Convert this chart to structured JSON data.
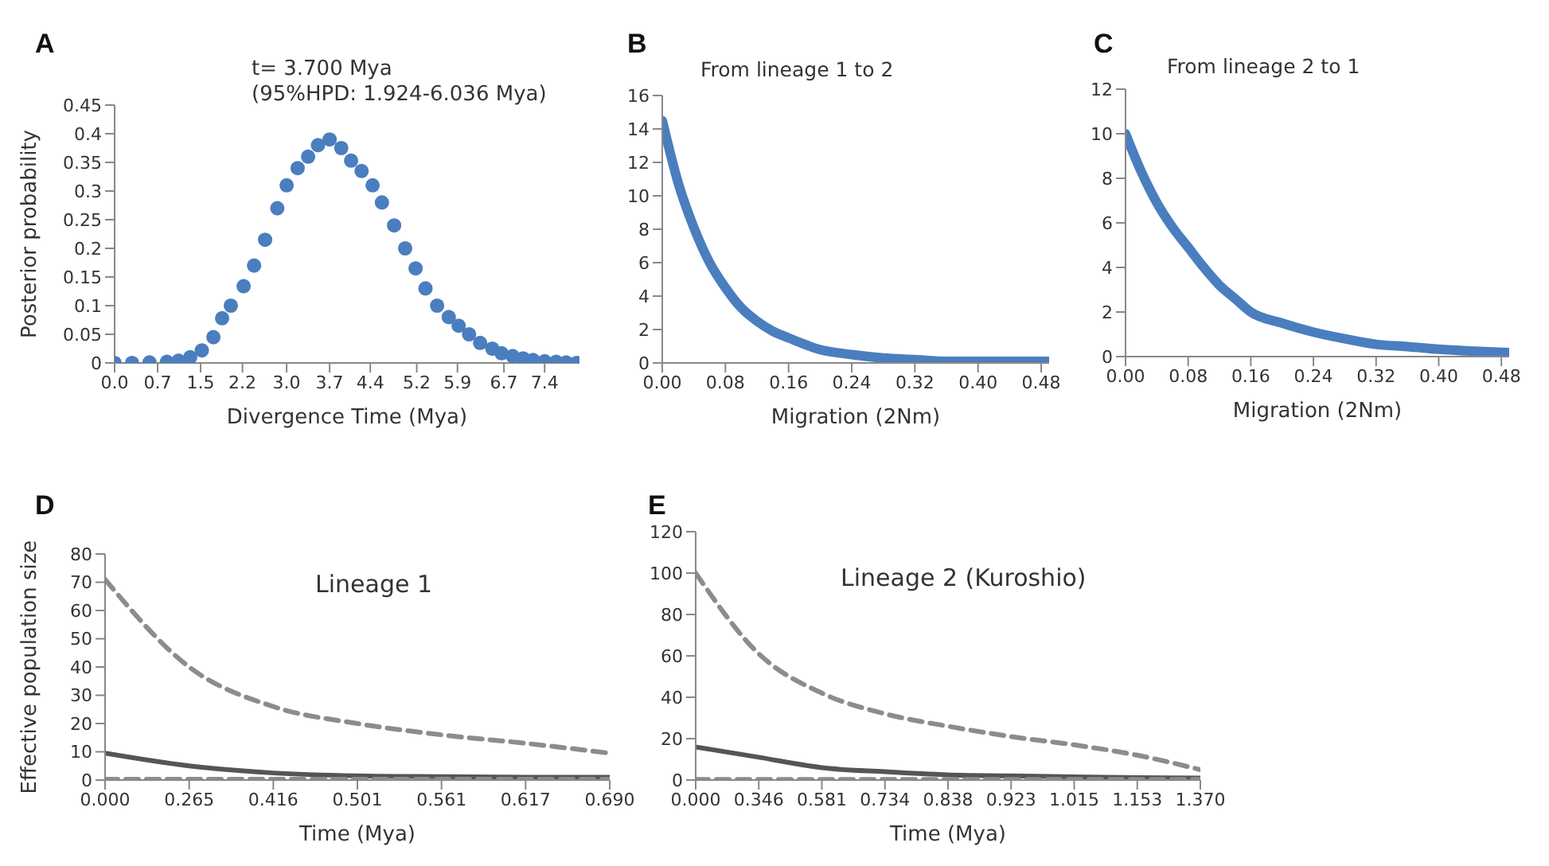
{
  "chart_data": [
    {
      "type": "scatter",
      "title": "A",
      "annotations": [
        "t= 3.700 Mya",
        "(95%HPD: 1.924-6.036 Mya)"
      ],
      "xlabel": "Divergence Time (Mya)",
      "ylabel": "Posterior probability",
      "marker": "circle",
      "x": [
        0,
        0.3,
        0.6,
        0.9,
        1.1,
        1.3,
        1.5,
        1.7,
        1.85,
        2.0,
        2.22,
        2.4,
        2.59,
        2.8,
        2.96,
        3.15,
        3.33,
        3.5,
        3.7,
        3.9,
        4.07,
        4.25,
        4.44,
        4.6,
        4.81,
        5.0,
        5.18,
        5.35,
        5.55,
        5.75,
        5.92,
        6.1,
        6.29,
        6.5,
        6.66,
        6.85,
        7.03,
        7.2,
        7.4,
        7.6,
        7.77,
        7.95
      ],
      "series": [
        {
          "color": "#4a7ebf",
          "values": [
            0,
            0,
            0.001,
            0.002,
            0.004,
            0.01,
            0.022,
            0.045,
            0.078,
            0.1,
            0.134,
            0.17,
            0.215,
            0.27,
            0.31,
            0.34,
            0.36,
            0.38,
            0.39,
            0.375,
            0.353,
            0.335,
            0.31,
            0.28,
            0.24,
            0.2,
            0.165,
            0.13,
            0.1,
            0.08,
            0.065,
            0.05,
            0.035,
            0.025,
            0.017,
            0.012,
            0.008,
            0.005,
            0.003,
            0.002,
            0.001,
            0
          ]
        }
      ],
      "xlim": [
        0,
        8.0
      ],
      "xticks": [
        {
          "value": 0,
          "label": "0.0"
        },
        {
          "value": 0.74,
          "label": "0.7"
        },
        {
          "value": 1.48,
          "label": "1.5"
        },
        2.2,
        {
          "value": 2.96,
          "label": "3.0"
        },
        3.7,
        4.4,
        5.2,
        5.9,
        6.7,
        7.4
      ],
      "ylim": [
        0,
        0.45
      ],
      "yticks": [
        0,
        0.05,
        0.1,
        0.15,
        0.2,
        0.25,
        0.3,
        0.35,
        0.4,
        0.45
      ]
    },
    {
      "type": "line",
      "title": "B",
      "subtitle": "From lineage 1 to 2",
      "xlabel": "Migration (2Nm)",
      "x": [
        0,
        0.02,
        0.04,
        0.06,
        0.08,
        0.1,
        0.12,
        0.14,
        0.16,
        0.2,
        0.24,
        0.28,
        0.32,
        0.36,
        0.4,
        0.44,
        0.49
      ],
      "series": [
        {
          "color": "#4a7ebf",
          "values": [
            14.5,
            10.8,
            8.1,
            6.0,
            4.5,
            3.3,
            2.5,
            1.9,
            1.5,
            0.8,
            0.5,
            0.3,
            0.2,
            0.1,
            0.1,
            0.1,
            0.1
          ]
        }
      ],
      "xlim": [
        0,
        0.49
      ],
      "xticks": [
        {
          "value": 0,
          "label": "0.00"
        },
        0.08,
        0.16,
        0.24,
        0.32,
        {
          "value": 0.4,
          "label": "0.40"
        },
        0.48
      ],
      "ylim": [
        0,
        16
      ],
      "yticks": [
        0,
        2,
        4,
        6,
        8,
        10,
        12,
        14,
        16
      ]
    },
    {
      "type": "line",
      "title": "C",
      "subtitle": "From lineage 2 to 1",
      "xlabel": "Migration (2Nm)",
      "x": [
        0,
        0.02,
        0.04,
        0.06,
        0.08,
        0.1,
        0.12,
        0.14,
        0.16,
        0.2,
        0.24,
        0.28,
        0.32,
        0.36,
        0.4,
        0.44,
        0.49
      ],
      "series": [
        {
          "color": "#4a7ebf",
          "values": [
            10,
            8.3,
            6.9,
            5.8,
            4.9,
            4.0,
            3.2,
            2.6,
            2.0,
            1.5,
            1.1,
            0.8,
            0.55,
            0.45,
            0.33,
            0.25,
            0.18
          ]
        }
      ],
      "xlim": [
        0,
        0.49
      ],
      "xticks": [
        {
          "value": 0,
          "label": "0.00"
        },
        0.08,
        0.16,
        0.24,
        0.32,
        {
          "value": 0.4,
          "label": "0.40"
        },
        0.48
      ],
      "ylim": [
        0,
        12
      ],
      "yticks": [
        0,
        2,
        4,
        6,
        8,
        10,
        12
      ]
    },
    {
      "type": "line",
      "title": "D",
      "annotations": [
        "Lineage 1"
      ],
      "xlabel": "Time (Mya)",
      "ylabel": "Effective population size",
      "categories": [
        "0.000",
        "0.265",
        "0.416",
        "0.501",
        "0.561",
        "0.617",
        "0.690"
      ],
      "series": [
        {
          "color": "#8c8c8c",
          "line_style": "dashed",
          "values": [
            71,
            40,
            26,
            20,
            16,
            13,
            9.5
          ]
        },
        {
          "color": "#555555",
          "line_style": "solid",
          "values": [
            9.5,
            5,
            2.5,
            1.5,
            1.2,
            1,
            1
          ]
        },
        {
          "color": "#8c8c8c",
          "line_style": "dashed",
          "values": [
            0.3,
            0.3,
            0.3,
            0.3,
            0.3,
            0.3,
            0.3
          ]
        }
      ],
      "ylim": [
        0,
        80
      ],
      "yticks": [
        0,
        10,
        20,
        30,
        40,
        50,
        60,
        70,
        80
      ]
    },
    {
      "type": "line",
      "title": "E",
      "annotations": [
        "Lineage 2 (Kuroshio)"
      ],
      "xlabel": "Time (Mya)",
      "categories": [
        "0.000",
        "0.346",
        "0.581",
        "0.734",
        "0.838",
        "0.923",
        "1.015",
        "1.153",
        "1.370"
      ],
      "series": [
        {
          "color": "#8c8c8c",
          "line_style": "dashed",
          "values": [
            100,
            61,
            42,
            32,
            26,
            21,
            17,
            12,
            5
          ]
        },
        {
          "color": "#555555",
          "line_style": "solid",
          "values": [
            16,
            11,
            6,
            4,
            2.5,
            2,
            1.5,
            1.2,
            1
          ]
        },
        {
          "color": "#8c8c8c",
          "line_style": "dashed",
          "values": [
            0.3,
            0.3,
            0.3,
            0.3,
            0.3,
            0.3,
            0.3,
            0.3,
            0.3
          ]
        }
      ],
      "ylim": [
        0,
        120
      ],
      "yticks": [
        0,
        20,
        40,
        60,
        80,
        100,
        120
      ]
    }
  ]
}
